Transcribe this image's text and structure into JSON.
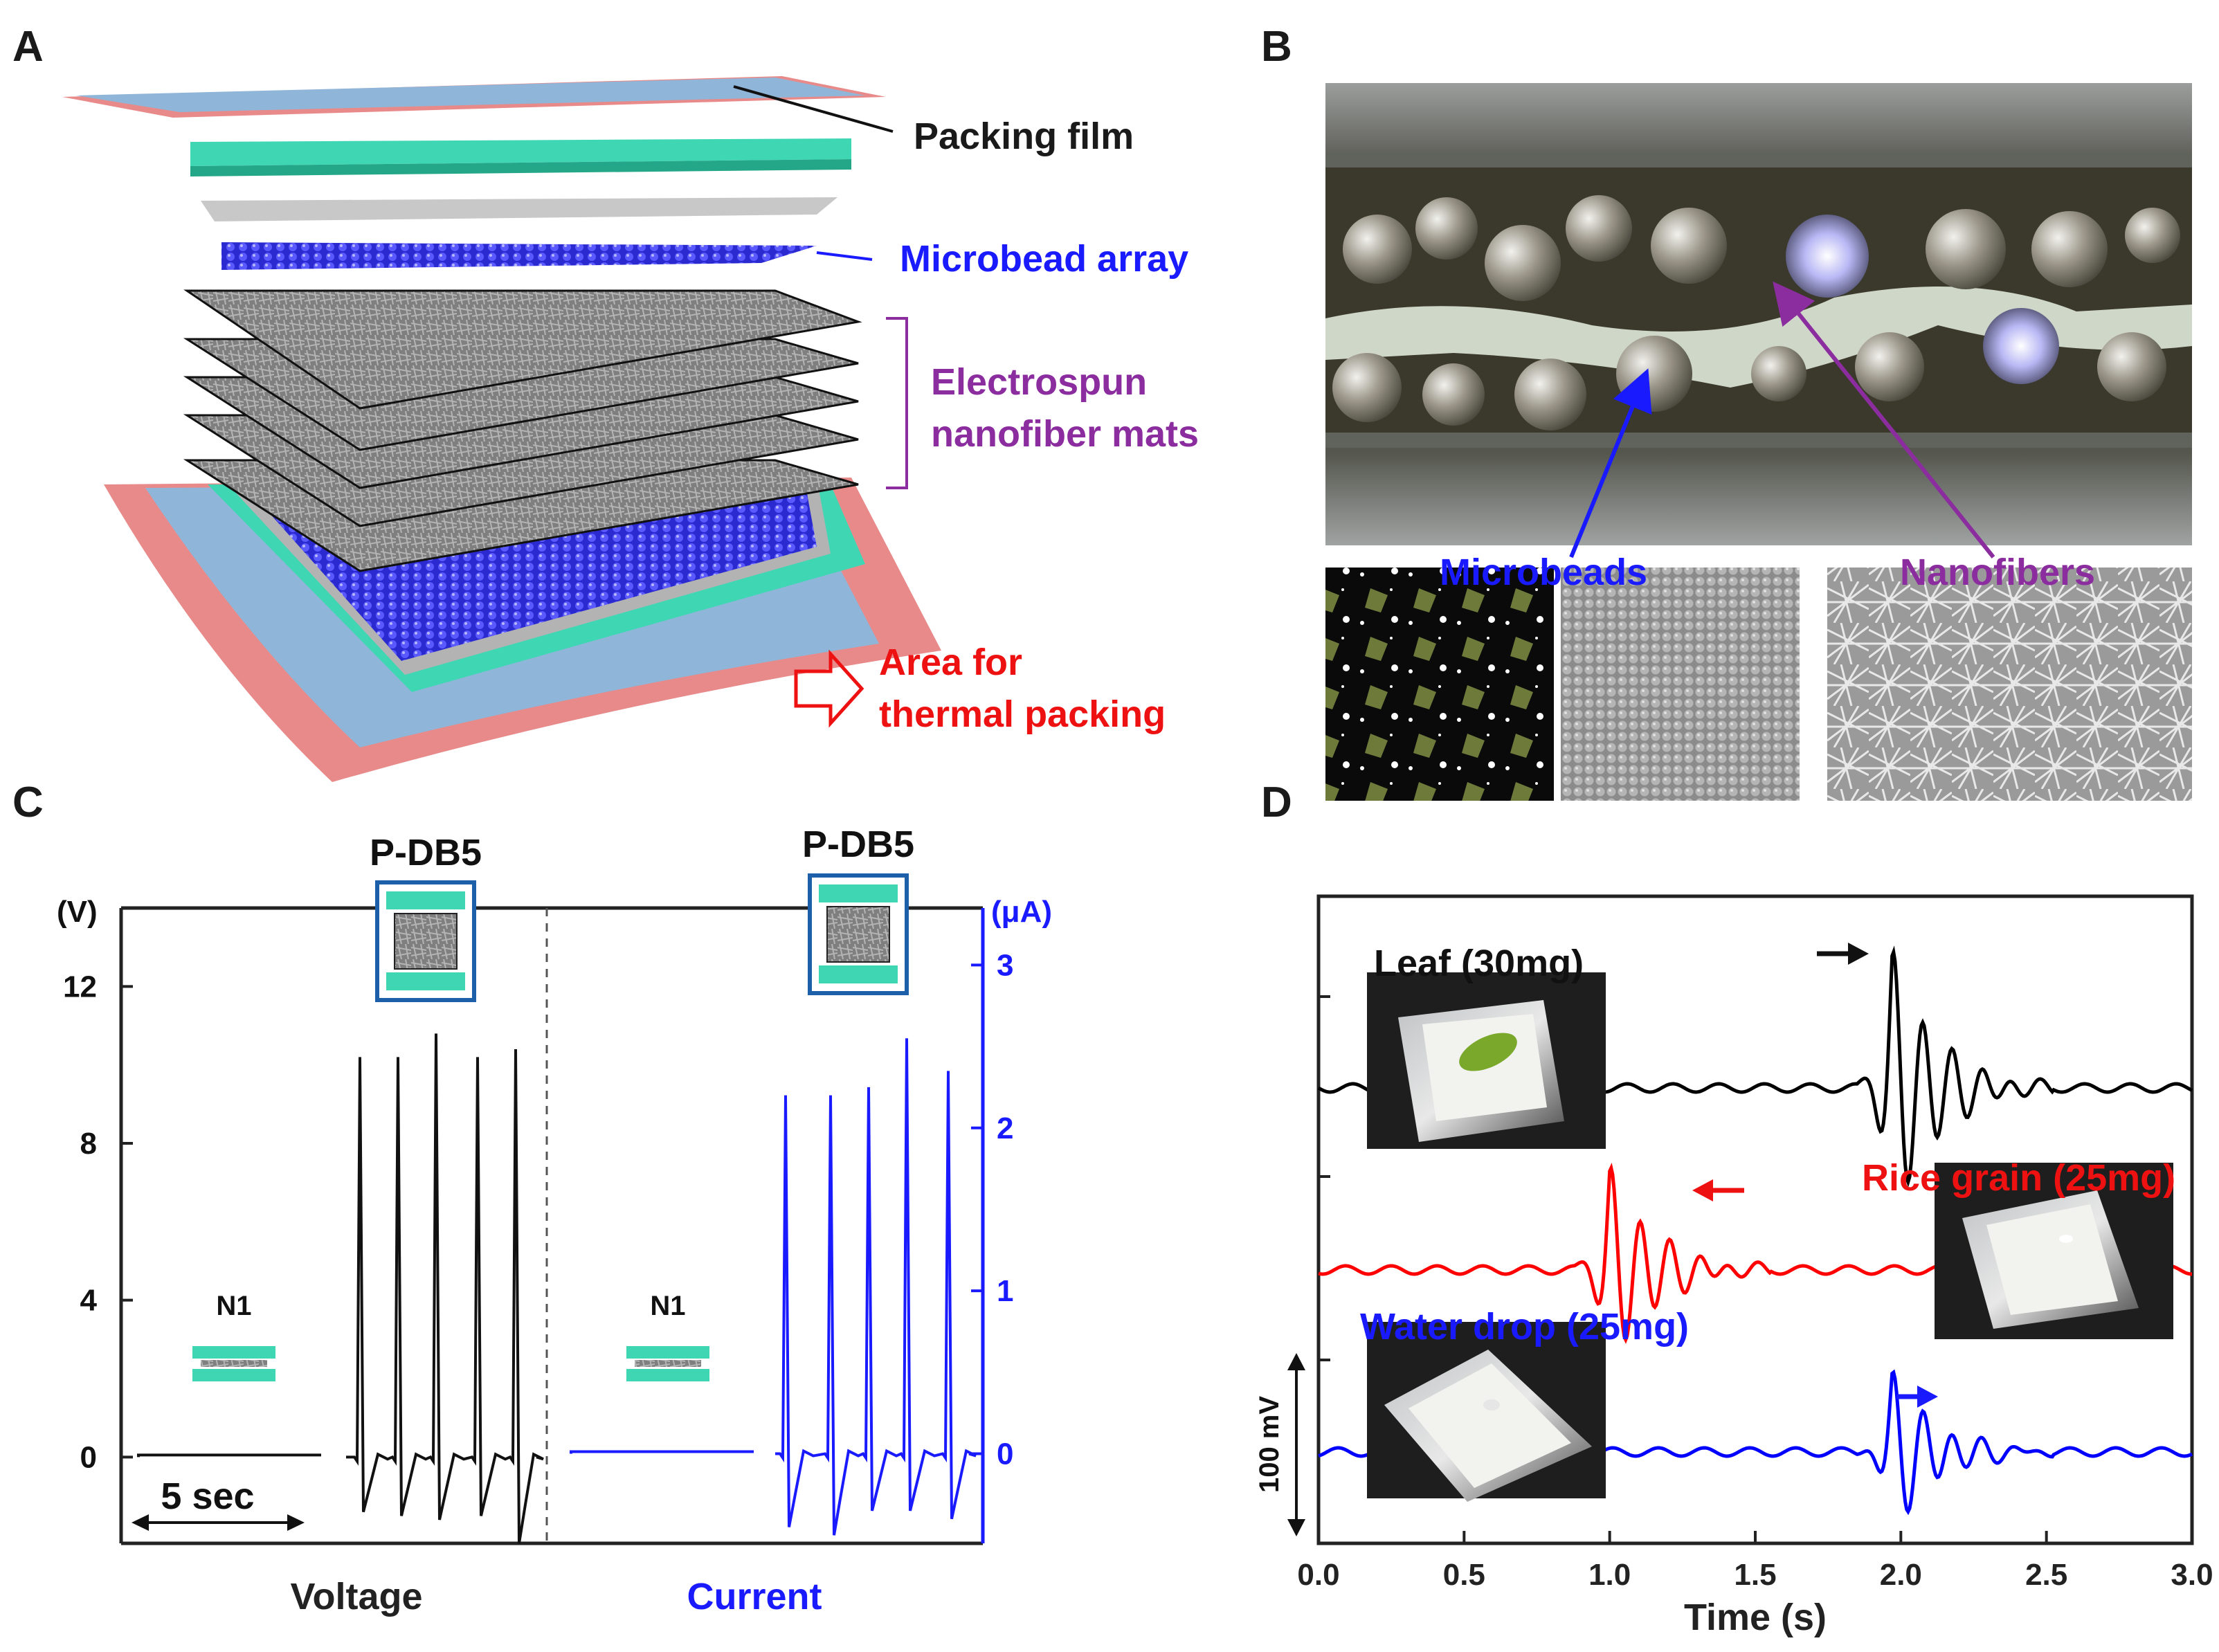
{
  "panels": {
    "a": {
      "label": "A",
      "callouts": {
        "packing_film": "Packing film",
        "microbead_array": "Microbead array",
        "nanofiber_line1": "Electrospun",
        "nanofiber_line2": "nanofiber mats",
        "thermal_line1": "Area for",
        "thermal_line2": "thermal packing"
      }
    },
    "b": {
      "label": "B",
      "microbeads": "Microbeads",
      "nanofibers": "Nanofibers"
    },
    "c": {
      "label": "C",
      "left_unit": "(V)",
      "right_unit": "(μA)",
      "device_p": "P-DB5",
      "device_n": "N1",
      "voltage_label": "Voltage",
      "current_label": "Current",
      "scale_label": "5 sec"
    },
    "d": {
      "label": "D",
      "leaf": "Leaf (30mg)",
      "rice": "Rice grain (25mg)",
      "water": "Water drop (25mg)",
      "scale_bar": "100 mV"
    }
  },
  "chart_data": [
    {
      "type": "line",
      "panel": "C",
      "yaxis_left": {
        "unit": "(V)",
        "ticks": [
          0,
          4,
          8,
          12
        ],
        "range": [
          -2.2,
          14
        ]
      },
      "yaxis_right": {
        "unit": "(μA)",
        "ticks": [
          0,
          1,
          2,
          3
        ],
        "range": [
          -0.55,
          3.35
        ]
      },
      "series": [
        {
          "name": "N1",
          "segment": "Voltage",
          "peak_v": 0
        },
        {
          "name": "P-DB5",
          "segment": "Voltage",
          "peaks_v": [
            10.2,
            10.2,
            10.8,
            10.2,
            10.4
          ],
          "troughs_v": [
            -1.4,
            -1.5,
            -1.6,
            -1.5,
            -2.2
          ]
        },
        {
          "name": "N1",
          "segment": "Current",
          "peak_ua": 0
        },
        {
          "name": "P-DB5",
          "segment": "Current",
          "peaks_ua": [
            2.2,
            2.2,
            2.25,
            2.55,
            2.35
          ],
          "troughs_ua": [
            -0.45,
            -0.5,
            -0.35,
            -0.35,
            -0.4
          ]
        }
      ]
    },
    {
      "type": "line",
      "panel": "D",
      "xlabel": "Time (s)",
      "xticks": [
        "0.0",
        "0.5",
        "1.0",
        "1.5",
        "2.0",
        "2.5",
        "3.0"
      ],
      "xlim": [
        0,
        3.0
      ],
      "series": [
        {
          "name": "Leaf (30mg)",
          "color": "#000000",
          "event_time_s": 1.97
        },
        {
          "name": "Rice grain (25mg)",
          "color": "#ff0000",
          "event_time_s": 1.0
        },
        {
          "name": "Water drop (25mg)",
          "color": "#0000ff",
          "event_time_s": 1.97
        }
      ]
    }
  ],
  "colors": {
    "blue": "#1a1aff",
    "purple": "#8b2d9e",
    "red": "#ee1111",
    "teal": "#3fd6b4",
    "film_blue": "#8fb6d8",
    "film_red": "#e88a8a"
  }
}
